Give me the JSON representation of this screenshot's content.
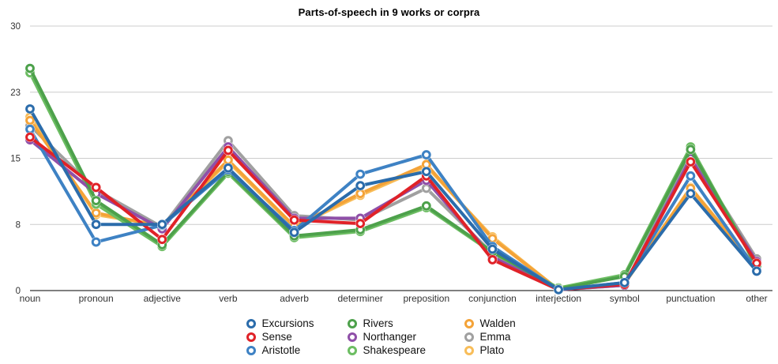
{
  "chart_data": {
    "type": "line",
    "title": "Parts-of-speech in 9 works or corpra",
    "xlabel": "",
    "ylabel": "",
    "ylim": [
      0,
      30
    ],
    "grid": true,
    "legend_position": "bottom",
    "y_ticks": [
      {
        "value": 0,
        "label": "0"
      },
      {
        "value": 7.5,
        "label": "8"
      },
      {
        "value": 15,
        "label": "15"
      },
      {
        "value": 22.5,
        "label": "23"
      },
      {
        "value": 30,
        "label": "30"
      }
    ],
    "categories": [
      "noun",
      "pronoun",
      "adjective",
      "verb",
      "adverb",
      "determiner",
      "preposition",
      "conjunction",
      "interjection",
      "symbol",
      "punctuation",
      "other"
    ],
    "series": [
      {
        "name": "Excursions",
        "color": "#2b6cab",
        "values": [
          20.6,
          7.5,
          7.5,
          13.9,
          6.6,
          11.9,
          13.5,
          4.7,
          0.1,
          0.9,
          11.0,
          2.2
        ]
      },
      {
        "name": "Sense",
        "color": "#e02228",
        "values": [
          17.4,
          11.7,
          5.8,
          15.9,
          8.0,
          7.6,
          13.0,
          3.5,
          0.1,
          0.7,
          14.6,
          3.1
        ]
      },
      {
        "name": "Aristotle",
        "color": "#3e82c4",
        "values": [
          18.3,
          5.5,
          7.4,
          13.7,
          6.8,
          13.2,
          15.4,
          5.0,
          0.1,
          0.9,
          13.0,
          2.3
        ]
      },
      {
        "name": "Rivers",
        "color": "#4da14b",
        "values": [
          25.2,
          10.2,
          5.2,
          13.5,
          6.2,
          6.9,
          9.6,
          4.4,
          0.2,
          1.6,
          16.0,
          2.8
        ]
      },
      {
        "name": "Northanger",
        "color": "#8f4fa8",
        "values": [
          17.1,
          11.0,
          7.0,
          16.3,
          8.2,
          8.2,
          12.5,
          3.8,
          0.1,
          0.6,
          15.0,
          3.3
        ]
      },
      {
        "name": "Shakespeare",
        "color": "#6cbd62",
        "values": [
          24.7,
          9.8,
          5.0,
          13.3,
          6.0,
          6.7,
          9.4,
          4.3,
          0.3,
          1.8,
          16.3,
          2.7
        ]
      },
      {
        "name": "Walden",
        "color": "#f4a338",
        "values": [
          19.3,
          8.8,
          7.3,
          14.8,
          7.3,
          11.0,
          14.3,
          5.9,
          0.1,
          0.8,
          11.6,
          2.6
        ]
      },
      {
        "name": "Emma",
        "color": "#a0a0a0",
        "values": [
          18.7,
          11.4,
          7.2,
          17.0,
          8.5,
          8.0,
          11.6,
          4.2,
          0.1,
          0.6,
          15.5,
          3.6
        ]
      },
      {
        "name": "Plato",
        "color": "#f8bd59",
        "values": [
          19.7,
          8.6,
          7.4,
          14.6,
          7.2,
          10.8,
          14.1,
          6.1,
          0.1,
          0.8,
          11.7,
          2.6
        ]
      }
    ],
    "draw_order": [
      "Plato",
      "Emma",
      "Walden",
      "Shakespeare",
      "Northanger",
      "Rivers",
      "Aristotle",
      "Sense",
      "Excursions"
    ],
    "legend_columns": [
      [
        "Excursions",
        "Sense",
        "Aristotle"
      ],
      [
        "Rivers",
        "Northanger",
        "Shakespeare"
      ],
      [
        "Walden",
        "Emma",
        "Plato"
      ]
    ],
    "colors": {
      "gridline": "#cccccc",
      "axis_line": "#000000",
      "tick_label": "#333333"
    }
  }
}
